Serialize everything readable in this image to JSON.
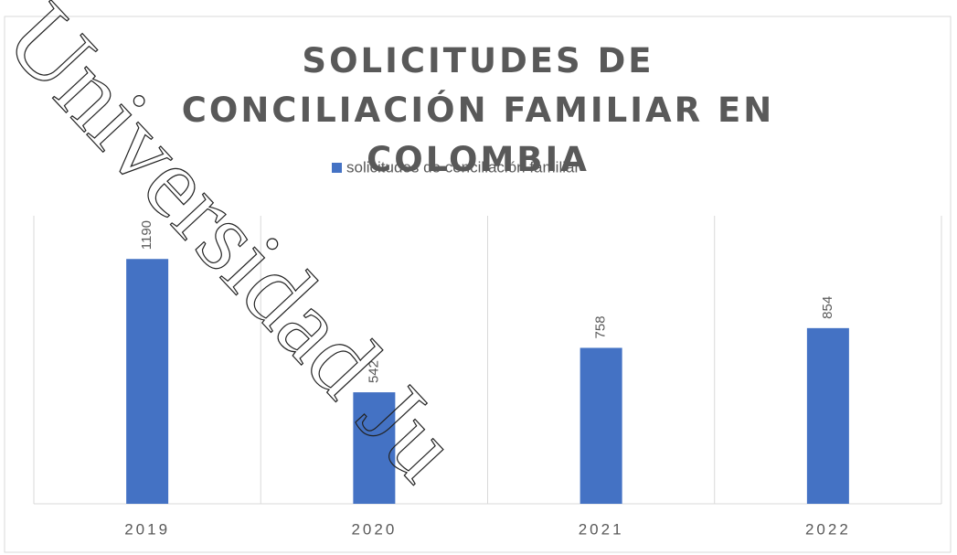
{
  "chart_data": {
    "type": "bar",
    "title": "SOLICITUDES DE CONCILIACIÓN FAMILIAR EN COLOMBIA",
    "categories": [
      "2019",
      "2020",
      "2021",
      "2022"
    ],
    "series": [
      {
        "name": "solicitudes de conciliación familiar",
        "color": "#4472c4",
        "values": [
          1190,
          542,
          758,
          854
        ]
      }
    ],
    "ylim": [
      0,
      1400
    ],
    "grid": true,
    "legend": "top",
    "annotations": [
      "Universidad Ju"
    ]
  }
}
